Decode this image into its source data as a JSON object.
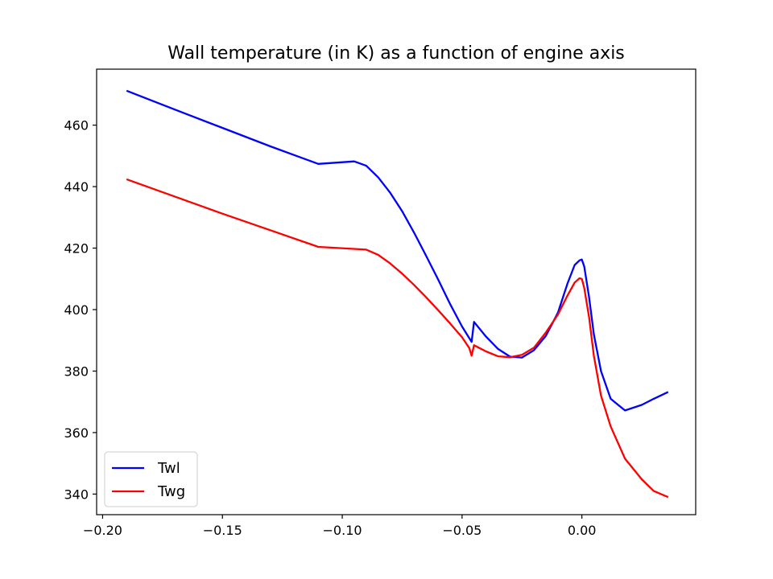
{
  "chart_data": {
    "type": "line",
    "title": "Wall temperature (in K) as a function of engine axis",
    "xlabel": "",
    "ylabel": "",
    "xlim": [
      -0.2025,
      0.0475
    ],
    "ylim": [
      333.3,
      478.2
    ],
    "xticks": [
      -0.2,
      -0.15,
      -0.1,
      -0.05,
      0.0
    ],
    "xtick_labels": [
      "−0.20",
      "−0.15",
      "−0.10",
      "−0.05",
      "0.00"
    ],
    "yticks": [
      340,
      360,
      380,
      400,
      420,
      440,
      460
    ],
    "ytick_labels": [
      "340",
      "360",
      "380",
      "400",
      "420",
      "440",
      "460"
    ],
    "grid": false,
    "legend_position": "lower-left",
    "series": [
      {
        "name": "Twl",
        "color": "#0000ff",
        "x": [
          -0.19,
          -0.17,
          -0.15,
          -0.13,
          -0.11,
          -0.095,
          -0.09,
          -0.085,
          -0.08,
          -0.075,
          -0.07,
          -0.065,
          -0.06,
          -0.055,
          -0.05,
          -0.046,
          -0.045,
          -0.04,
          -0.035,
          -0.03,
          -0.025,
          -0.02,
          -0.015,
          -0.01,
          -0.006,
          -0.003,
          -0.001,
          0.0,
          0.001,
          0.003,
          0.005,
          0.008,
          0.012,
          0.018,
          0.025,
          0.03,
          0.036
        ],
        "y": [
          471.2,
          465.1,
          459.1,
          453.1,
          447.4,
          448.2,
          446.8,
          443.0,
          438.0,
          432.0,
          425.0,
          417.5,
          409.8,
          401.8,
          394.5,
          389.5,
          396.0,
          391.2,
          387.2,
          384.7,
          384.4,
          386.8,
          391.5,
          399.0,
          408.5,
          414.5,
          416.0,
          416.3,
          414.0,
          404.0,
          392.0,
          380.0,
          371.0,
          367.2,
          369.0,
          371.0,
          373.2
        ]
      },
      {
        "name": "Twg",
        "color": "#ff0000",
        "x": [
          -0.19,
          -0.17,
          -0.15,
          -0.13,
          -0.11,
          -0.09,
          -0.085,
          -0.08,
          -0.075,
          -0.07,
          -0.065,
          -0.06,
          -0.055,
          -0.05,
          -0.047,
          -0.046,
          -0.045,
          -0.04,
          -0.035,
          -0.03,
          -0.025,
          -0.02,
          -0.015,
          -0.01,
          -0.006,
          -0.003,
          -0.001,
          0.0,
          0.001,
          0.003,
          0.005,
          0.008,
          0.012,
          0.018,
          0.025,
          0.03,
          0.036
        ],
        "y": [
          442.4,
          436.8,
          431.2,
          425.8,
          420.4,
          419.5,
          417.8,
          415.0,
          411.7,
          408.0,
          404.0,
          399.8,
          395.5,
          391.0,
          387.5,
          385.0,
          388.4,
          386.4,
          384.8,
          384.5,
          385.3,
          387.6,
          392.6,
          398.4,
          404.6,
          408.8,
          410.2,
          410.0,
          407.0,
          397.5,
          385.0,
          372.0,
          362.0,
          351.5,
          344.8,
          341.0,
          339.0
        ]
      }
    ]
  }
}
